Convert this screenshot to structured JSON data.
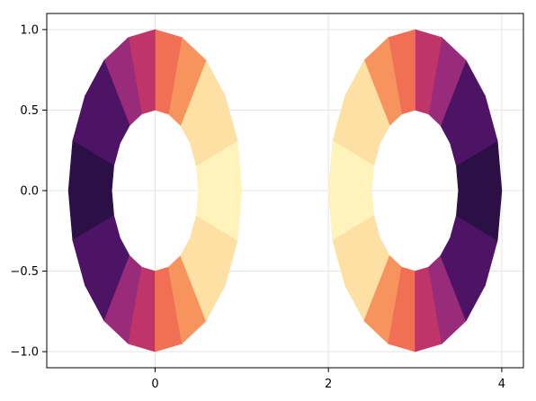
{
  "chart_data": {
    "type": "polygon",
    "xlim": [
      -1.25,
      4.25
    ],
    "ylim": [
      -1.1,
      1.1
    ],
    "x_ticks": [
      {
        "value": 0,
        "label": "0"
      },
      {
        "value": 2,
        "label": "2"
      },
      {
        "value": 4,
        "label": "4"
      }
    ],
    "y_ticks": [
      {
        "value": 1.0,
        "label": "1.0"
      },
      {
        "value": 0.5,
        "label": "0.5"
      },
      {
        "value": 0.0,
        "label": "0.0"
      },
      {
        "value": -0.5,
        "label": "−0.5"
      },
      {
        "value": -1.0,
        "label": "−1.0"
      }
    ],
    "grid": true,
    "colormap": "magma",
    "shapes": [
      {
        "name": "left-annulus",
        "cx": 0,
        "cy": 0,
        "rx_outer": 1.0,
        "ry_outer": 1.0,
        "rx_inner": 0.5,
        "ry_inner": 0.5,
        "color_direction": "increasing-with-x"
      },
      {
        "name": "right-annulus",
        "cx": 3,
        "cy": 0,
        "rx_outer": 1.0,
        "ry_outer": 1.0,
        "rx_inner": 0.5,
        "ry_inner": 0.5,
        "color_direction": "decreasing-with-x"
      }
    ],
    "bands": [
      {
        "color": "#2b1045"
      },
      {
        "color": "#4d1466"
      },
      {
        "color": "#711f80"
      },
      {
        "color": "#982b7a"
      },
      {
        "color": "#bf3569"
      },
      {
        "color": "#de4a5a"
      },
      {
        "color": "#f06f55"
      },
      {
        "color": "#f7935c"
      },
      {
        "color": "#fbba80"
      },
      {
        "color": "#fde0a3"
      },
      {
        "color": "#fdf3bb"
      }
    ]
  }
}
